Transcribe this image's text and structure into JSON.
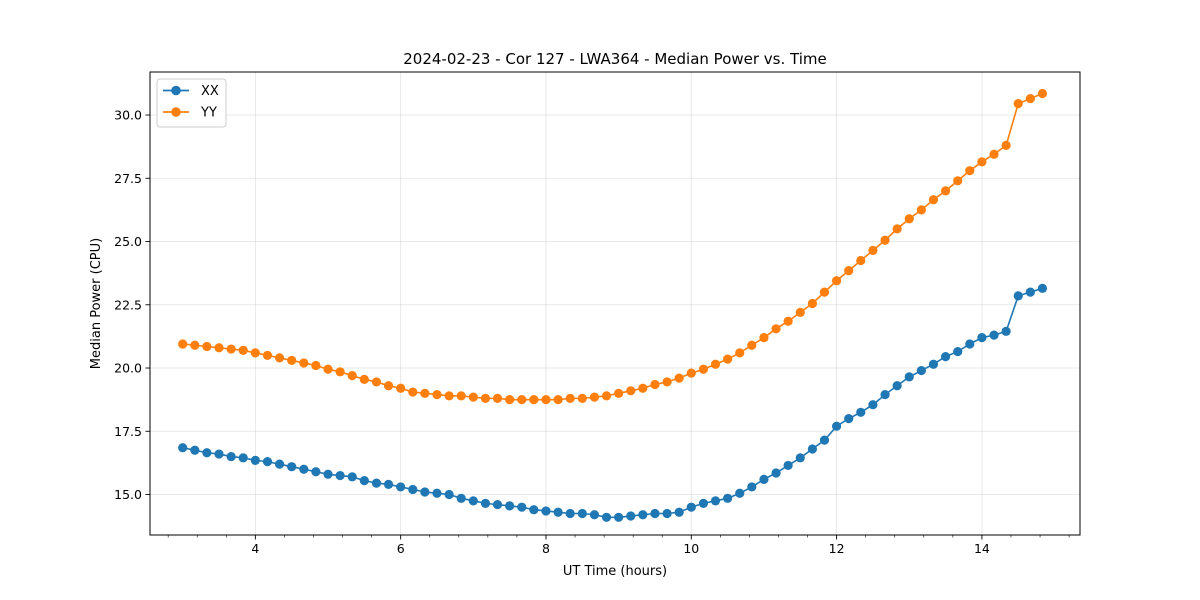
{
  "chart_data": {
    "type": "line",
    "title": "2024-02-23 - Cor 127 - LWA364 - Median Power vs. Time",
    "xlabel": "UT Time (hours)",
    "ylabel": "Median Power (CPU)",
    "xlim": [
      2.55,
      15.35
    ],
    "ylim": [
      13.4,
      31.7
    ],
    "xticks": [
      4,
      6,
      8,
      10,
      12,
      14
    ],
    "xtick_labels": [
      "4",
      "6",
      "8",
      "10",
      "12",
      "14"
    ],
    "yticks": [
      15.0,
      17.5,
      20.0,
      22.5,
      25.0,
      27.5,
      30.0
    ],
    "ytick_labels": [
      "15.0",
      "17.5",
      "20.0",
      "22.5",
      "25.0",
      "27.5",
      "30.0"
    ],
    "grid": true,
    "legend_position": "top-left",
    "x": [
      3.0,
      3.167,
      3.333,
      3.5,
      3.667,
      3.833,
      4.0,
      4.167,
      4.333,
      4.5,
      4.667,
      4.833,
      5.0,
      5.167,
      5.333,
      5.5,
      5.667,
      5.833,
      6.0,
      6.167,
      6.333,
      6.5,
      6.667,
      6.833,
      7.0,
      7.167,
      7.333,
      7.5,
      7.667,
      7.833,
      8.0,
      8.167,
      8.333,
      8.5,
      8.667,
      8.833,
      9.0,
      9.167,
      9.333,
      9.5,
      9.667,
      9.833,
      10.0,
      10.167,
      10.333,
      10.5,
      10.667,
      10.833,
      11.0,
      11.167,
      11.333,
      11.5,
      11.667,
      11.833,
      12.0,
      12.167,
      12.333,
      12.5,
      12.667,
      12.833,
      13.0,
      13.167,
      13.333,
      13.5,
      13.667,
      13.833,
      14.0,
      14.167,
      14.333,
      14.5,
      14.667,
      14.833
    ],
    "series": [
      {
        "name": "XX",
        "color": "#1f77b4",
        "values": [
          16.85,
          16.75,
          16.65,
          16.6,
          16.5,
          16.45,
          16.35,
          16.3,
          16.2,
          16.1,
          16.0,
          15.9,
          15.8,
          15.75,
          15.7,
          15.55,
          15.45,
          15.4,
          15.3,
          15.2,
          15.1,
          15.05,
          15.0,
          14.85,
          14.75,
          14.65,
          14.6,
          14.55,
          14.5,
          14.4,
          14.35,
          14.3,
          14.25,
          14.25,
          14.2,
          14.1,
          14.1,
          14.15,
          14.2,
          14.25,
          14.25,
          14.3,
          14.5,
          14.65,
          14.75,
          14.85,
          15.05,
          15.3,
          15.6,
          15.85,
          16.15,
          16.45,
          16.8,
          17.15,
          17.7,
          18.0,
          18.25,
          18.55,
          18.95,
          19.3,
          19.65,
          19.9,
          20.15,
          20.45,
          20.65,
          20.95,
          21.2,
          21.3,
          21.45,
          22.85,
          23.0,
          23.15
        ]
      },
      {
        "name": "YY",
        "color": "#ff7f0e",
        "values": [
          20.95,
          20.9,
          20.85,
          20.8,
          20.75,
          20.7,
          20.6,
          20.5,
          20.4,
          20.3,
          20.2,
          20.1,
          19.95,
          19.85,
          19.7,
          19.55,
          19.45,
          19.3,
          19.2,
          19.05,
          19.0,
          18.95,
          18.9,
          18.9,
          18.85,
          18.8,
          18.8,
          18.75,
          18.75,
          18.75,
          18.75,
          18.75,
          18.8,
          18.8,
          18.85,
          18.9,
          19.0,
          19.1,
          19.2,
          19.35,
          19.45,
          19.6,
          19.8,
          19.95,
          20.15,
          20.35,
          20.6,
          20.9,
          21.2,
          21.55,
          21.85,
          22.2,
          22.55,
          23.0,
          23.45,
          23.85,
          24.25,
          24.65,
          25.05,
          25.5,
          25.9,
          26.25,
          26.65,
          27.0,
          27.4,
          27.8,
          28.15,
          28.45,
          28.8,
          30.45,
          30.65,
          30.85
        ]
      }
    ]
  }
}
